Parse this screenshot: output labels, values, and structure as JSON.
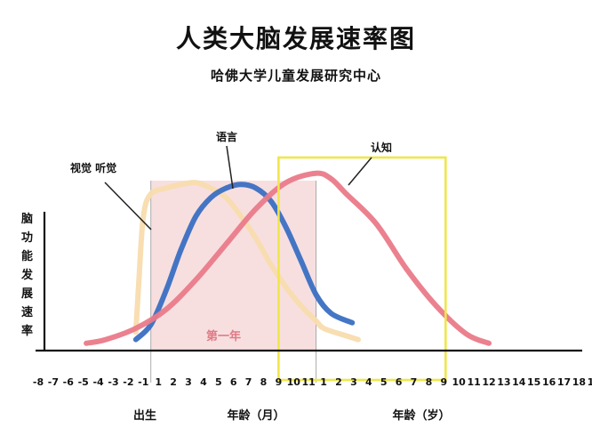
{
  "header": {
    "title": "人类大脑发展速率图",
    "subtitle": "哈佛大学儿童发展研究中心"
  },
  "chart_data": {
    "type": "line",
    "title": "人类大脑发展速率图",
    "subtitle": "哈佛大学儿童发展研究中心",
    "ylabel": "脑功能发展速率",
    "y_values_shown": false,
    "x_tick_labels": [
      "-8",
      "-7",
      "-6",
      "-5",
      "-4",
      "-3",
      "-2",
      "-1",
      "1",
      "2",
      "3",
      "4",
      "5",
      "6",
      "7",
      "8",
      "9",
      "10",
      "11",
      "1",
      "2",
      "3",
      "4",
      "5",
      "6",
      "7",
      "8",
      "9",
      "10",
      "11",
      "12",
      "13",
      "14",
      "15",
      "16",
      "17",
      "18",
      "19"
    ],
    "x_groups": [
      {
        "label": "出生",
        "position": "between -1 and 1"
      },
      {
        "label": "年龄（月）",
        "range": "1–11"
      },
      {
        "label": "年龄（岁）",
        "range": "1–19"
      }
    ],
    "highlight_band": {
      "label": "第一年",
      "from_tick": "1 (月)",
      "to_tick": "1 (岁)",
      "color": "#f7dfe0"
    },
    "highlight_box": {
      "from_tick": "9 (月)",
      "to_tick": "6 (岁)",
      "color": "#f0e64a"
    },
    "series": [
      {
        "name": "视觉 听觉",
        "color": "#f8dcae",
        "points": [
          [
            -1.0,
            0.08
          ],
          [
            -0.8,
            0.35
          ],
          [
            -0.5,
            0.7
          ],
          [
            0,
            0.82
          ],
          [
            1,
            0.85
          ],
          [
            2,
            0.87
          ],
          [
            3,
            0.88
          ],
          [
            4,
            0.85
          ],
          [
            5,
            0.8
          ],
          [
            6,
            0.7
          ],
          [
            7,
            0.58
          ],
          [
            8,
            0.44
          ],
          [
            9,
            0.32
          ],
          [
            10,
            0.22
          ],
          [
            11,
            0.14
          ],
          [
            11.5,
            0.1
          ],
          [
            13,
            0.06
          ],
          [
            13.8,
            0.04
          ]
        ]
      },
      {
        "name": "语言",
        "color": "#3a6fc2",
        "points": [
          [
            -1.0,
            0.04
          ],
          [
            0,
            0.12
          ],
          [
            1,
            0.3
          ],
          [
            2,
            0.52
          ],
          [
            3,
            0.7
          ],
          [
            4,
            0.8
          ],
          [
            5,
            0.85
          ],
          [
            6,
            0.87
          ],
          [
            7,
            0.85
          ],
          [
            8,
            0.78
          ],
          [
            9,
            0.64
          ],
          [
            10,
            0.46
          ],
          [
            11,
            0.28
          ],
          [
            12,
            0.18
          ],
          [
            13.4,
            0.13
          ]
        ]
      },
      {
        "name": "认知",
        "color": "#ea7a89",
        "points": [
          [
            -4.3,
            0.02
          ],
          [
            -3,
            0.04
          ],
          [
            -1,
            0.1
          ],
          [
            1,
            0.2
          ],
          [
            3,
            0.36
          ],
          [
            5,
            0.55
          ],
          [
            7,
            0.74
          ],
          [
            9,
            0.88
          ],
          [
            11,
            0.93
          ],
          [
            12,
            0.9
          ],
          [
            13,
            0.82
          ],
          [
            15,
            0.66
          ],
          [
            17,
            0.42
          ],
          [
            19,
            0.22
          ],
          [
            21,
            0.07
          ],
          [
            22.5,
            0.02
          ]
        ]
      }
    ],
    "annotations": [
      {
        "text": "视觉 听觉",
        "series": "视觉 听觉"
      },
      {
        "text": "语言",
        "series": "语言"
      },
      {
        "text": "认知",
        "series": "认知"
      }
    ],
    "grid": false,
    "legend": "none"
  }
}
